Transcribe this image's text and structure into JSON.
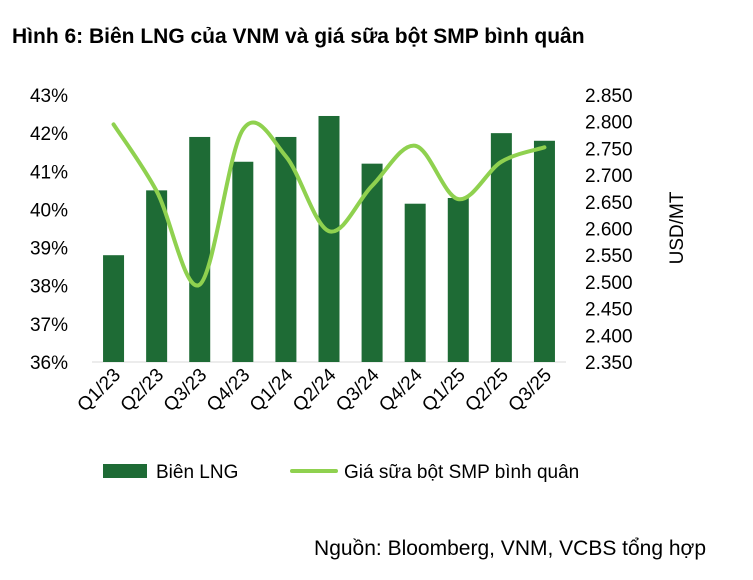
{
  "chart_data": {
    "type": "bar+line",
    "title": "Hình 6: Biên LNG của VNM và giá sữa bột SMP bình quân",
    "categories": [
      "Q1/23",
      "Q2/23",
      "Q3/23",
      "Q4/23",
      "Q1/24",
      "Q2/24",
      "Q3/24",
      "Q4/24",
      "Q1/25",
      "Q2/25",
      "Q3/25"
    ],
    "series": [
      {
        "name": "Biên LNG",
        "type": "bar",
        "axis": "left",
        "color": "#1e6b35",
        "values": [
          38.8,
          40.5,
          41.9,
          41.25,
          41.9,
          42.45,
          41.2,
          40.15,
          40.3,
          42.0,
          41.8
        ]
      },
      {
        "name": "Giá sữa bột SMP bình quân",
        "type": "line",
        "axis": "right",
        "color": "#8fd14f",
        "values": [
          2795,
          2670,
          2495,
          2785,
          2735,
          2595,
          2680,
          2755,
          2655,
          2725,
          2752
        ]
      }
    ],
    "y_left": {
      "min": 36,
      "max": 43,
      "ticks": [
        "36%",
        "37%",
        "38%",
        "39%",
        "40%",
        "41%",
        "42%",
        "43%"
      ]
    },
    "y_right": {
      "min": 2350,
      "max": 2850,
      "label": "USD/MT",
      "ticks": [
        "2.350",
        "2.400",
        "2.450",
        "2.500",
        "2.550",
        "2.600",
        "2.650",
        "2.700",
        "2.750",
        "2.800",
        "2.850"
      ]
    },
    "legend_position": "bottom",
    "source": "Nguồn: Bloomberg, VNM, VCBS tổng hợp"
  }
}
